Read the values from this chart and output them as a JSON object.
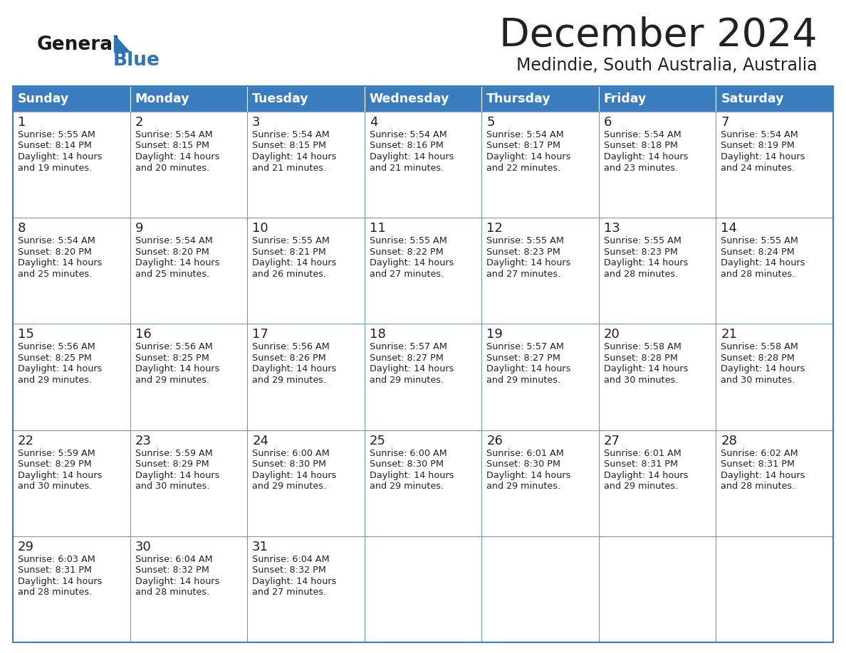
{
  "title": "December 2024",
  "subtitle": "Medindie, South Australia, Australia",
  "header_color": "#3a7dbf",
  "header_text_color": "#ffffff",
  "cell_bg_even": "#ffffff",
  "cell_bg_odd": "#f0f4f8",
  "border_color": "#3a7dbf",
  "text_color": "#222222",
  "days_of_week": [
    "Sunday",
    "Monday",
    "Tuesday",
    "Wednesday",
    "Thursday",
    "Friday",
    "Saturday"
  ],
  "logo_general_color": "#1a1a1a",
  "logo_blue_color": "#2e75b6",
  "weeks": [
    [
      {
        "day": 1,
        "sunrise": "5:55 AM",
        "sunset": "8:14 PM",
        "daylight": "14 hours\nand 19 minutes."
      },
      {
        "day": 2,
        "sunrise": "5:54 AM",
        "sunset": "8:15 PM",
        "daylight": "14 hours\nand 20 minutes."
      },
      {
        "day": 3,
        "sunrise": "5:54 AM",
        "sunset": "8:15 PM",
        "daylight": "14 hours\nand 21 minutes."
      },
      {
        "day": 4,
        "sunrise": "5:54 AM",
        "sunset": "8:16 PM",
        "daylight": "14 hours\nand 21 minutes."
      },
      {
        "day": 5,
        "sunrise": "5:54 AM",
        "sunset": "8:17 PM",
        "daylight": "14 hours\nand 22 minutes."
      },
      {
        "day": 6,
        "sunrise": "5:54 AM",
        "sunset": "8:18 PM",
        "daylight": "14 hours\nand 23 minutes."
      },
      {
        "day": 7,
        "sunrise": "5:54 AM",
        "sunset": "8:19 PM",
        "daylight": "14 hours\nand 24 minutes."
      }
    ],
    [
      {
        "day": 8,
        "sunrise": "5:54 AM",
        "sunset": "8:20 PM",
        "daylight": "14 hours\nand 25 minutes."
      },
      {
        "day": 9,
        "sunrise": "5:54 AM",
        "sunset": "8:20 PM",
        "daylight": "14 hours\nand 25 minutes."
      },
      {
        "day": 10,
        "sunrise": "5:55 AM",
        "sunset": "8:21 PM",
        "daylight": "14 hours\nand 26 minutes."
      },
      {
        "day": 11,
        "sunrise": "5:55 AM",
        "sunset": "8:22 PM",
        "daylight": "14 hours\nand 27 minutes."
      },
      {
        "day": 12,
        "sunrise": "5:55 AM",
        "sunset": "8:23 PM",
        "daylight": "14 hours\nand 27 minutes."
      },
      {
        "day": 13,
        "sunrise": "5:55 AM",
        "sunset": "8:23 PM",
        "daylight": "14 hours\nand 28 minutes."
      },
      {
        "day": 14,
        "sunrise": "5:55 AM",
        "sunset": "8:24 PM",
        "daylight": "14 hours\nand 28 minutes."
      }
    ],
    [
      {
        "day": 15,
        "sunrise": "5:56 AM",
        "sunset": "8:25 PM",
        "daylight": "14 hours\nand 29 minutes."
      },
      {
        "day": 16,
        "sunrise": "5:56 AM",
        "sunset": "8:25 PM",
        "daylight": "14 hours\nand 29 minutes."
      },
      {
        "day": 17,
        "sunrise": "5:56 AM",
        "sunset": "8:26 PM",
        "daylight": "14 hours\nand 29 minutes."
      },
      {
        "day": 18,
        "sunrise": "5:57 AM",
        "sunset": "8:27 PM",
        "daylight": "14 hours\nand 29 minutes."
      },
      {
        "day": 19,
        "sunrise": "5:57 AM",
        "sunset": "8:27 PM",
        "daylight": "14 hours\nand 29 minutes."
      },
      {
        "day": 20,
        "sunrise": "5:58 AM",
        "sunset": "8:28 PM",
        "daylight": "14 hours\nand 30 minutes."
      },
      {
        "day": 21,
        "sunrise": "5:58 AM",
        "sunset": "8:28 PM",
        "daylight": "14 hours\nand 30 minutes."
      }
    ],
    [
      {
        "day": 22,
        "sunrise": "5:59 AM",
        "sunset": "8:29 PM",
        "daylight": "14 hours\nand 30 minutes."
      },
      {
        "day": 23,
        "sunrise": "5:59 AM",
        "sunset": "8:29 PM",
        "daylight": "14 hours\nand 30 minutes."
      },
      {
        "day": 24,
        "sunrise": "6:00 AM",
        "sunset": "8:30 PM",
        "daylight": "14 hours\nand 29 minutes."
      },
      {
        "day": 25,
        "sunrise": "6:00 AM",
        "sunset": "8:30 PM",
        "daylight": "14 hours\nand 29 minutes."
      },
      {
        "day": 26,
        "sunrise": "6:01 AM",
        "sunset": "8:30 PM",
        "daylight": "14 hours\nand 29 minutes."
      },
      {
        "day": 27,
        "sunrise": "6:01 AM",
        "sunset": "8:31 PM",
        "daylight": "14 hours\nand 29 minutes."
      },
      {
        "day": 28,
        "sunrise": "6:02 AM",
        "sunset": "8:31 PM",
        "daylight": "14 hours\nand 28 minutes."
      }
    ],
    [
      {
        "day": 29,
        "sunrise": "6:03 AM",
        "sunset": "8:31 PM",
        "daylight": "14 hours\nand 28 minutes."
      },
      {
        "day": 30,
        "sunrise": "6:04 AM",
        "sunset": "8:32 PM",
        "daylight": "14 hours\nand 28 minutes."
      },
      {
        "day": 31,
        "sunrise": "6:04 AM",
        "sunset": "8:32 PM",
        "daylight": "14 hours\nand 27 minutes."
      },
      null,
      null,
      null,
      null
    ]
  ]
}
